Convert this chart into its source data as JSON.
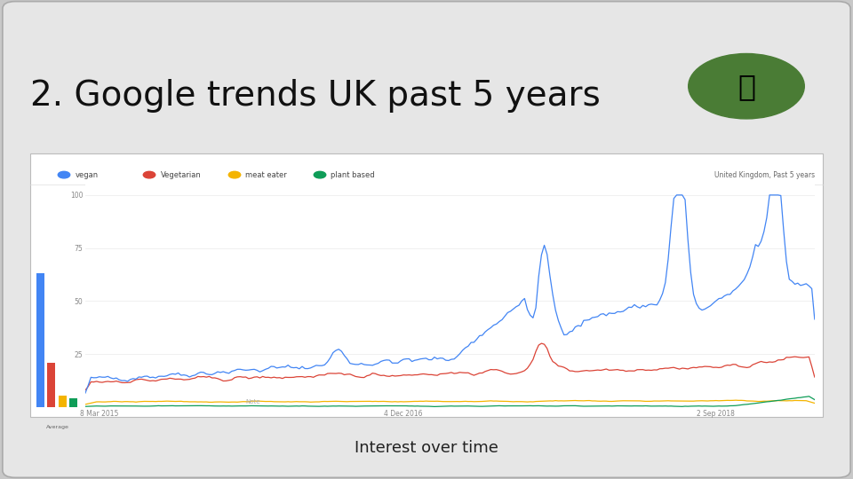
{
  "title": "2. Google trends UK past 5 years",
  "subtitle": "Interest over time",
  "slide_bg": "#c8c8c8",
  "card_bg": "#e8e8e8",
  "chart_bg": "#ffffff",
  "title_fontsize": 28,
  "subtitle_fontsize": 13,
  "legend_items": [
    "vegan",
    "Vegetarian",
    "meat eater",
    "plant based"
  ],
  "legend_colors": [
    "#4285f4",
    "#db4437",
    "#f4b400",
    "#0f9d58"
  ],
  "region_label": "United Kingdom, Past 5 years",
  "x_ticks": [
    "8 Mar 2015",
    "4 Dec 2016",
    "2 Sep 2018"
  ],
  "y_ticks": [
    25,
    50,
    75,
    100
  ],
  "icon_color": "#4a7c35",
  "avg_bar_blue": 0.6,
  "avg_bar_red": 0.2,
  "avg_bar_yellow": 0.05,
  "avg_bar_green": 0.04
}
